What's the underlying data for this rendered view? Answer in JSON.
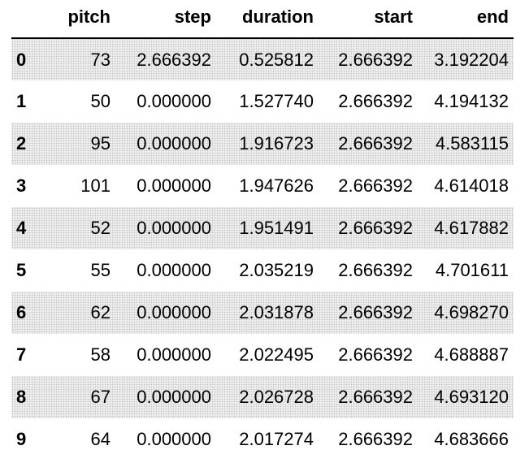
{
  "table": {
    "index_header": "",
    "columns": [
      "pitch",
      "step",
      "duration",
      "start",
      "end"
    ],
    "rows": [
      {
        "index": "0",
        "pitch": "73",
        "step": "2.666392",
        "duration": "0.525812",
        "start": "2.666392",
        "end": "3.192204"
      },
      {
        "index": "1",
        "pitch": "50",
        "step": "0.000000",
        "duration": "1.527740",
        "start": "2.666392",
        "end": "4.194132"
      },
      {
        "index": "2",
        "pitch": "95",
        "step": "0.000000",
        "duration": "1.916723",
        "start": "2.666392",
        "end": "4.583115"
      },
      {
        "index": "3",
        "pitch": "101",
        "step": "0.000000",
        "duration": "1.947626",
        "start": "2.666392",
        "end": "4.614018"
      },
      {
        "index": "4",
        "pitch": "52",
        "step": "0.000000",
        "duration": "1.951491",
        "start": "2.666392",
        "end": "4.617882"
      },
      {
        "index": "5",
        "pitch": "55",
        "step": "0.000000",
        "duration": "2.035219",
        "start": "2.666392",
        "end": "4.701611"
      },
      {
        "index": "6",
        "pitch": "62",
        "step": "0.000000",
        "duration": "2.031878",
        "start": "2.666392",
        "end": "4.698270"
      },
      {
        "index": "7",
        "pitch": "58",
        "step": "0.000000",
        "duration": "2.022495",
        "start": "2.666392",
        "end": "4.688887"
      },
      {
        "index": "8",
        "pitch": "67",
        "step": "0.000000",
        "duration": "2.026728",
        "start": "2.666392",
        "end": "4.693120"
      },
      {
        "index": "9",
        "pitch": "64",
        "step": "0.000000",
        "duration": "2.017274",
        "start": "2.666392",
        "end": "4.683666"
      }
    ]
  }
}
